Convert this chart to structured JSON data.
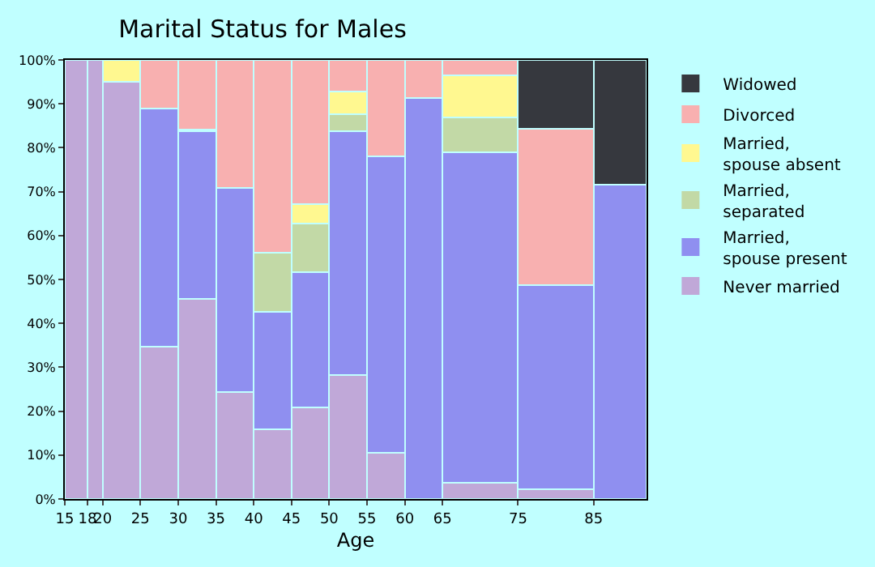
{
  "chart_data": {
    "type": "bar",
    "stacked": true,
    "title": "Marital Status for Males",
    "xlabel": "Age",
    "x": [
      16.5,
      19,
      22.5,
      27.5,
      32.5,
      37.5,
      42.5,
      47.5,
      52.5,
      57.5,
      62.5,
      70,
      80,
      88.5
    ],
    "xlim": [
      15,
      92
    ],
    "xticks": [
      15,
      18,
      20,
      25,
      30,
      35,
      40,
      45,
      50,
      55,
      60,
      65,
      75,
      85
    ],
    "ylim": [
      0,
      100
    ],
    "yticks": [
      {
        "value": 0,
        "label": "0%"
      },
      {
        "value": 10,
        "label": "10%"
      },
      {
        "value": 20,
        "label": "20%"
      },
      {
        "value": 30,
        "label": "30%"
      },
      {
        "value": 40,
        "label": "40%"
      },
      {
        "value": 50,
        "label": "50%"
      },
      {
        "value": 60,
        "label": "60%"
      },
      {
        "value": 70,
        "label": "70%"
      },
      {
        "value": 80,
        "label": "80%"
      },
      {
        "value": 90,
        "label": "90%"
      },
      {
        "value": 100,
        "label": "100%"
      }
    ],
    "legend": "right",
    "series": [
      {
        "name": "Never married",
        "color": "#c0a8d8",
        "values": [
          100,
          100,
          95,
          34.6,
          45.6,
          24.3,
          15.8,
          20.9,
          28.2,
          10.6,
          null,
          3.7,
          2.2,
          null
        ]
      },
      {
        "name": "Married, spouse present",
        "color": "#8f8ff0",
        "values": [
          null,
          null,
          null,
          54.3,
          38.1,
          46.5,
          26.9,
          30.8,
          55.5,
          67.5,
          91.3,
          75.2,
          46.6,
          71.5
        ]
      },
      {
        "name": "Married, separated",
        "color": "#c2d9a6",
        "values": [
          null,
          null,
          null,
          null,
          null,
          null,
          13.4,
          11.0,
          4.0,
          null,
          null,
          8.0,
          null,
          null
        ]
      },
      {
        "name": "Married, spouse absent",
        "color": "#fff890",
        "values": [
          null,
          null,
          5.0,
          null,
          0.4,
          null,
          null,
          4.4,
          5.1,
          null,
          null,
          9.6,
          null,
          null
        ]
      },
      {
        "name": "Divorced",
        "color": "#f8b0b0",
        "values": [
          null,
          null,
          null,
          11.1,
          15.9,
          29.2,
          43.9,
          32.9,
          7.2,
          21.9,
          8.7,
          3.5,
          35.6,
          null
        ]
      },
      {
        "name": "Widowed",
        "color": "#36383e",
        "values": [
          null,
          null,
          null,
          null,
          null,
          null,
          null,
          null,
          null,
          null,
          null,
          null,
          15.6,
          28.5
        ]
      }
    ]
  }
}
